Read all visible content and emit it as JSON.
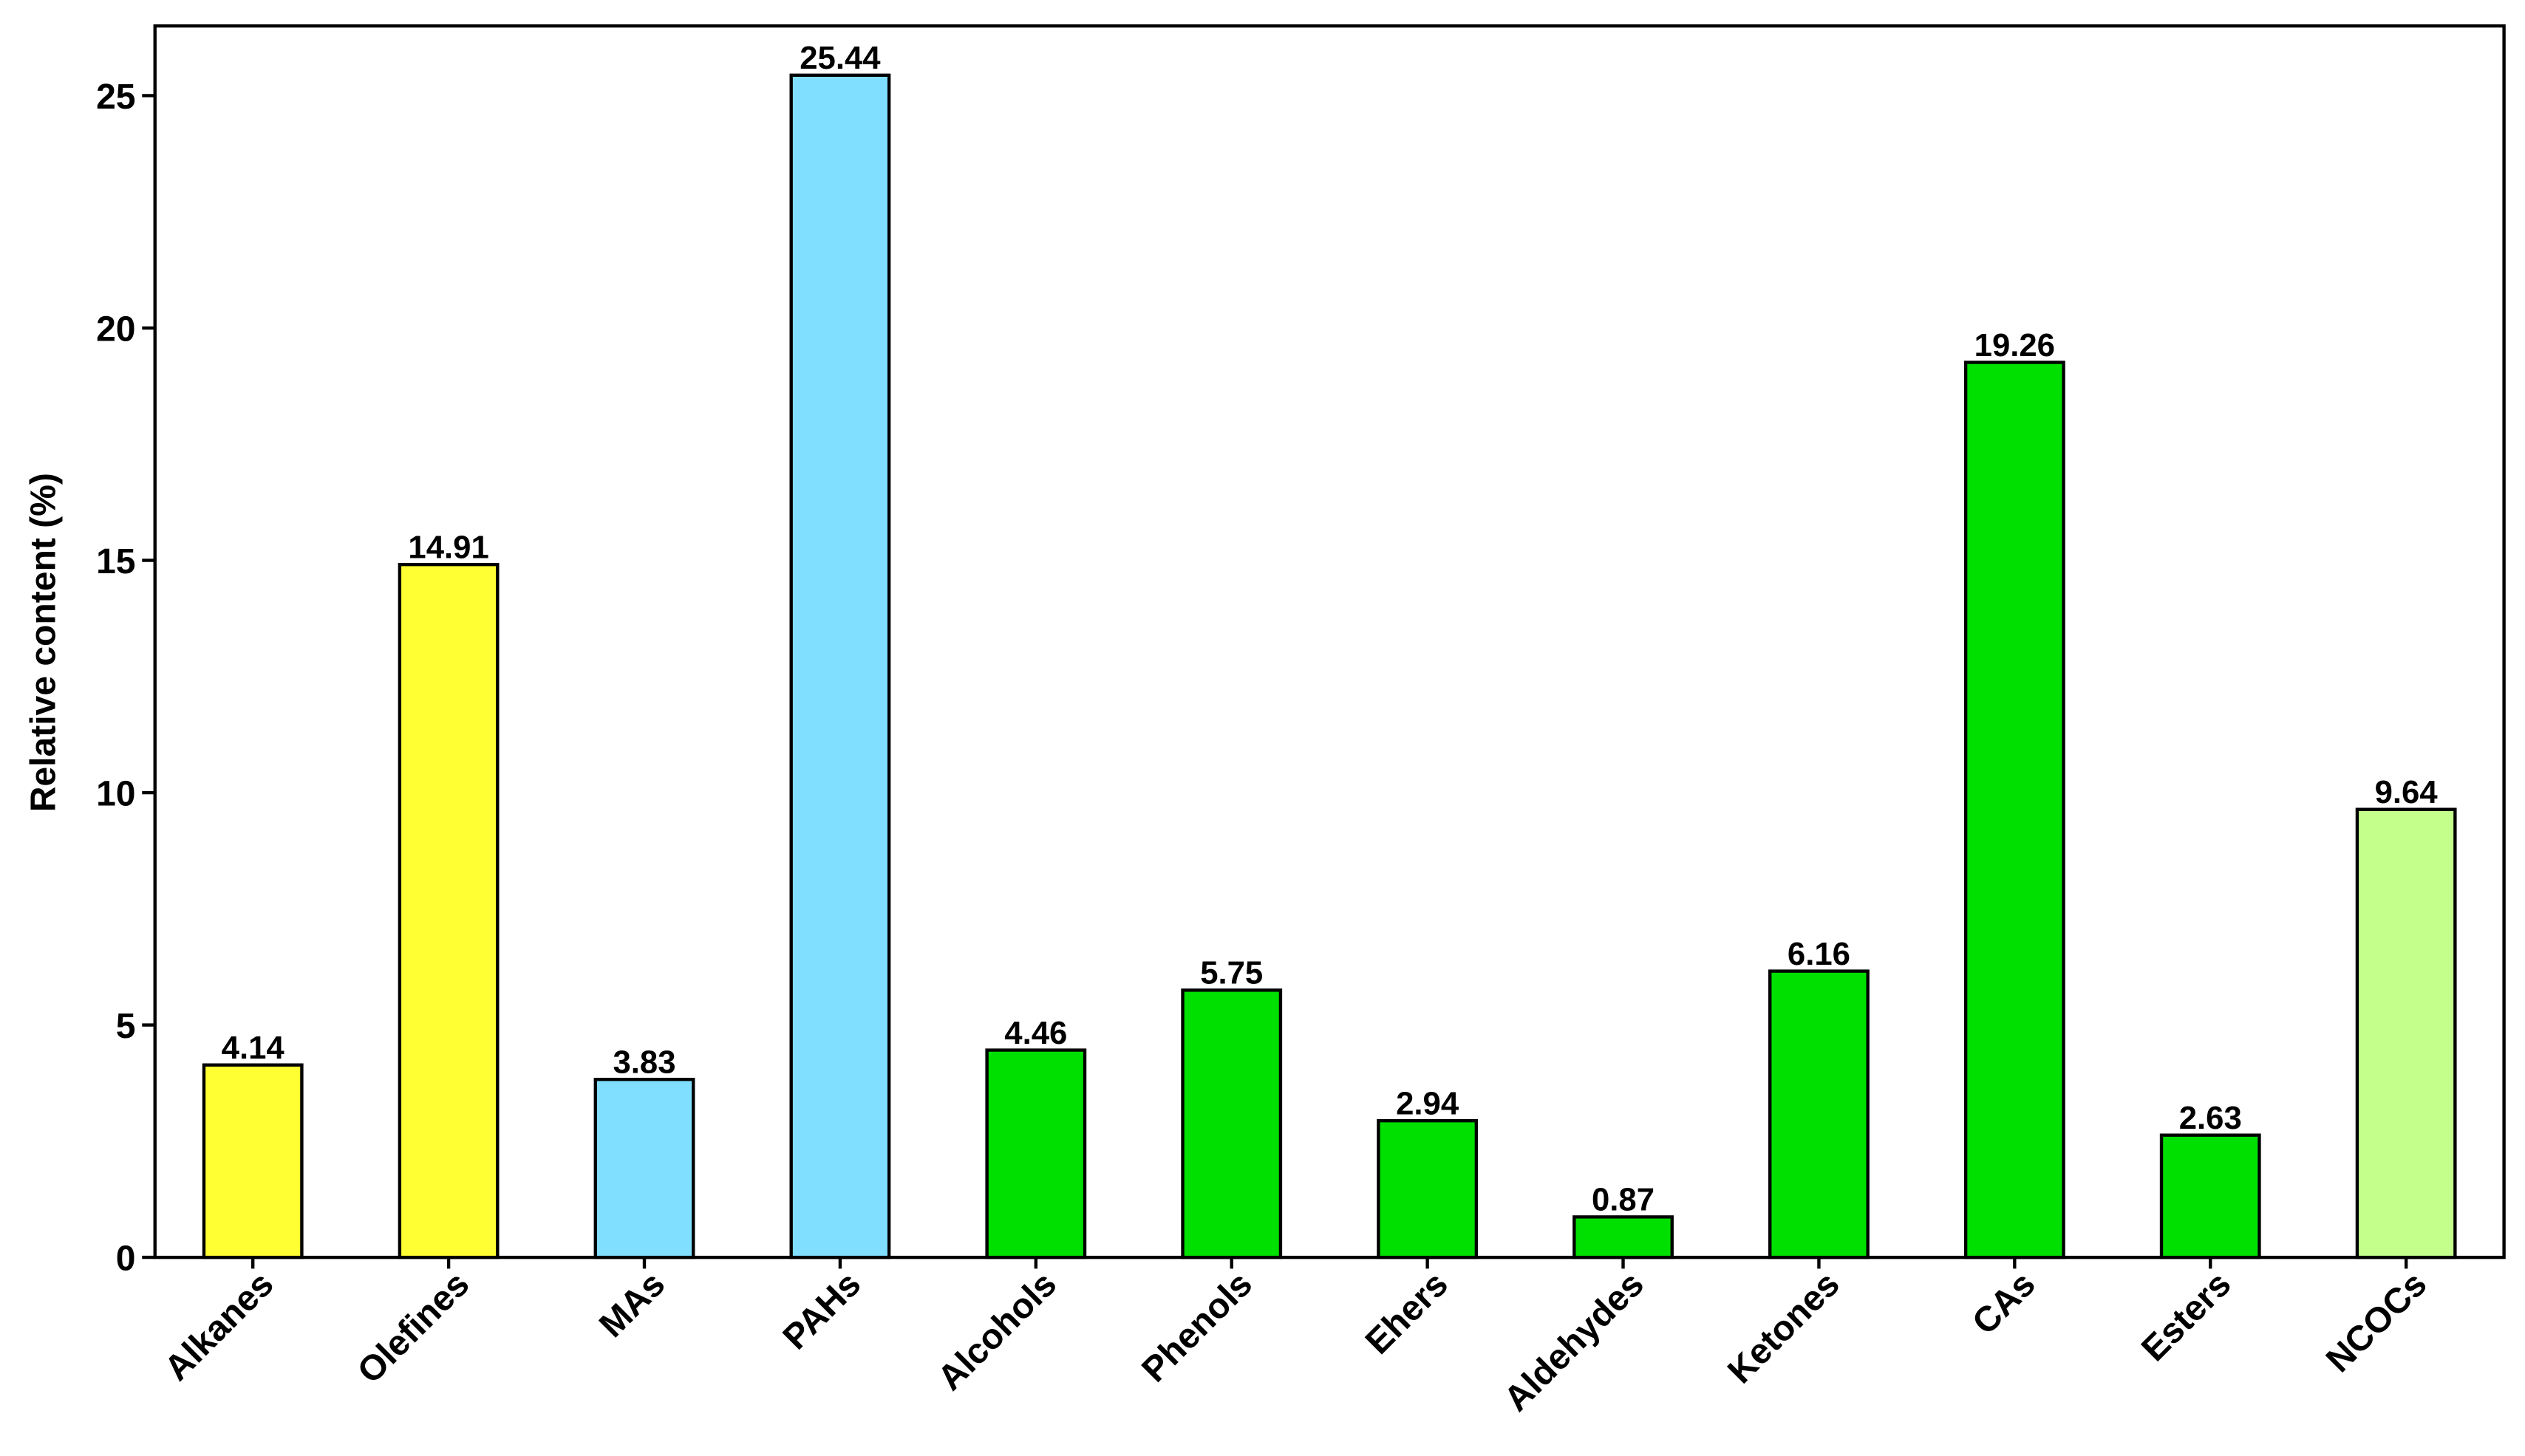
{
  "chart_data": {
    "type": "bar",
    "y_label": "Relative content (%)",
    "categories": [
      "Alkanes",
      "Olefines",
      "MAs",
      "PAHs",
      "Alcohols",
      "Phenols",
      "Ehers",
      "Aldehydes",
      "Ketones",
      "CAs",
      "Esters",
      "NCOCs"
    ],
    "values": [
      4.14,
      14.91,
      3.83,
      25.44,
      4.46,
      5.75,
      2.94,
      0.87,
      6.16,
      19.26,
      2.63,
      9.64
    ],
    "colors": [
      "#ffff33",
      "#ffff33",
      "#80dfff",
      "#80dfff",
      "#00e000",
      "#00e000",
      "#00e000",
      "#00e000",
      "#00e000",
      "#00e000",
      "#00e000",
      "#c4ff8c"
    ],
    "ylim": [
      0,
      26.5
    ],
    "yticks": [
      0,
      5,
      10,
      15,
      20,
      25
    ],
    "grid": false
  }
}
